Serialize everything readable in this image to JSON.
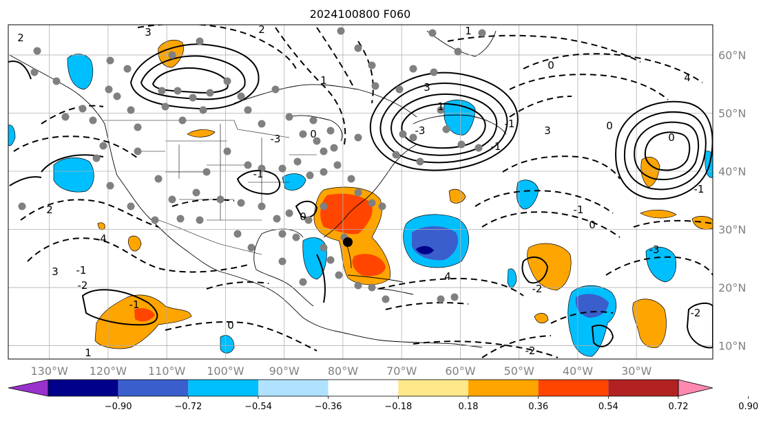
{
  "title": "2024100800 F060",
  "map": {
    "lon_range": [
      -137,
      -17
    ],
    "lat_range": [
      7.7,
      65.2
    ],
    "lon_ticks": [
      {
        "value": -130,
        "label": "130°W"
      },
      {
        "value": -120,
        "label": "120°W"
      },
      {
        "value": -110,
        "label": "110°W"
      },
      {
        "value": -100,
        "label": "100°W"
      },
      {
        "value": -90,
        "label": "90°W"
      },
      {
        "value": -80,
        "label": "80°W"
      },
      {
        "value": -70,
        "label": "70°W"
      },
      {
        "value": -60,
        "label": "60°W"
      },
      {
        "value": -50,
        "label": "50°W"
      },
      {
        "value": -40,
        "label": "40°W"
      },
      {
        "value": -30,
        "label": "30°W"
      }
    ],
    "lat_ticks": [
      {
        "value": 60,
        "label": "60°N"
      },
      {
        "value": 50,
        "label": "50°N"
      },
      {
        "value": 40,
        "label": "40°N"
      },
      {
        "value": 30,
        "label": "30°N"
      },
      {
        "value": 20,
        "label": "20°N"
      },
      {
        "value": 10,
        "label": "10°N"
      }
    ],
    "gridlines": true,
    "contour_label_values": [
      "2",
      "3",
      "1",
      "0",
      "-1",
      "-2",
      "4",
      "-3",
      "0",
      "-1"
    ]
  },
  "colorbar": {
    "labels": [
      "−0.90",
      "−0.72",
      "−0.54",
      "−0.36",
      "−0.18",
      "0.18",
      "0.36",
      "0.54",
      "0.72",
      "0.90"
    ],
    "colors": [
      "#9932cc",
      "#00008b",
      "#3a5fcd",
      "#00bfff",
      "#b0e2ff",
      "#ffffff",
      "#ffe88a",
      "#ffa500",
      "#ff4500",
      "#b22222",
      "#ff88b0"
    ]
  }
}
